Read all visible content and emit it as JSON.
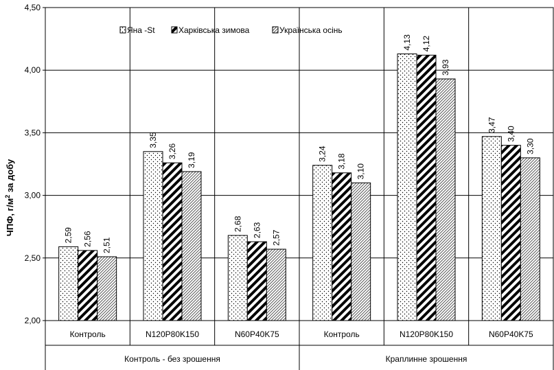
{
  "chart_data": {
    "type": "bar",
    "ylabel_main": "ЧПФ, г/м",
    "ylabel_sup": "2",
    "ylabel_tail": " за добу",
    "ylim": [
      2.0,
      4.5
    ],
    "yticks": [
      "2,00",
      "2,50",
      "3,00",
      "3,50",
      "4,00",
      "4,50"
    ],
    "grid": true,
    "legend_position": "top-left",
    "categories": [
      "Контроль",
      "N120P80K150",
      "N60P40K75",
      "Контроль",
      "N120P80K150",
      "N60P40K75"
    ],
    "groups": [
      {
        "label": "Контроль - без зрошення",
        "span": 3
      },
      {
        "label": "Краплинне зрошення",
        "span": 3
      }
    ],
    "series": [
      {
        "name": "Яна -St",
        "pattern": "dots",
        "values": [
          2.59,
          3.35,
          2.68,
          3.24,
          4.13,
          3.47
        ],
        "labels": [
          "2,59",
          "3,35",
          "2,68",
          "3,24",
          "4,13",
          "3,47"
        ]
      },
      {
        "name": "Харківська зимова",
        "pattern": "bold-diagonal",
        "values": [
          2.56,
          3.26,
          2.63,
          3.18,
          4.12,
          3.4
        ],
        "labels": [
          "2,56",
          "3,26",
          "2,63",
          "3,18",
          "4,12",
          "3,40"
        ]
      },
      {
        "name": "Українська осінь",
        "pattern": "fine-diagonal",
        "values": [
          2.51,
          3.19,
          2.57,
          3.1,
          3.93,
          3.3
        ],
        "labels": [
          "2,51",
          "3,19",
          "2,57",
          "3,10",
          "3,93",
          "3,30"
        ]
      }
    ]
  }
}
